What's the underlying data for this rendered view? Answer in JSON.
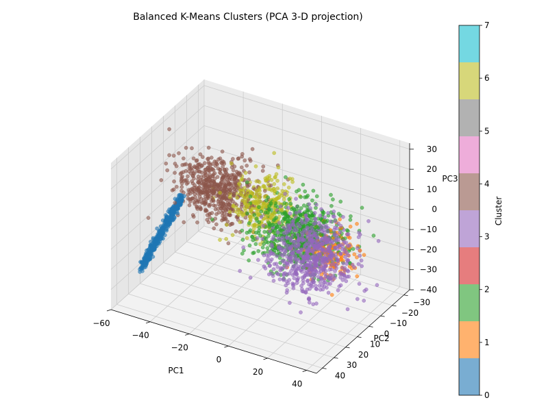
{
  "chart_data": {
    "type": "scatter",
    "projection": "3d",
    "title": "Balanced K-Means Clusters (PCA 3-D projection)",
    "xlabel": "PC1",
    "ylabel": "PC2",
    "zlabel": "PC3",
    "xlim": [
      -60,
      45
    ],
    "ylim": [
      -35,
      45
    ],
    "zlim": [
      -40,
      33
    ],
    "x_ticks": [
      "−60",
      "−40",
      "−20",
      "0",
      "20",
      "40"
    ],
    "y_ticks": [
      "−30",
      "−20",
      "−10",
      "0",
      "10",
      "20",
      "30",
      "40"
    ],
    "z_ticks": [
      "−40",
      "−30",
      "−20",
      "−10",
      "0",
      "10",
      "20",
      "30"
    ],
    "grid": true,
    "colorbar": {
      "label": "Cluster",
      "range": [
        0,
        7
      ],
      "ticks": [
        "0",
        "1",
        "2",
        "3",
        "4",
        "5",
        "6",
        "7"
      ],
      "colors": [
        "#1f77b4",
        "#ff7f0e",
        "#2ca02c",
        "#d62728",
        "#9467bd",
        "#8c564b",
        "#e377c2",
        "#7f7f7f",
        "#bcbd22",
        "#17becf"
      ]
    },
    "series": [
      {
        "cluster": 0,
        "color": "#1f77b4",
        "centroid": [
          -42,
          18,
          -12
        ],
        "spread": [
          12,
          4,
          10
        ],
        "shape": "elongated arc",
        "count": 400
      },
      {
        "cluster": 1,
        "color": "#ff7f0e",
        "centroid": [
          22,
          -5,
          -12
        ],
        "spread": [
          6,
          6,
          6
        ],
        "count": 150
      },
      {
        "cluster": 2,
        "color": "#2ca02c",
        "centroid": [
          10,
          2,
          -4
        ],
        "spread": [
          10,
          8,
          7
        ],
        "count": 700
      },
      {
        "cluster": 4,
        "color": "#9467bd",
        "centroid": [
          8,
          -12,
          -22
        ],
        "spread": [
          10,
          8,
          8
        ],
        "count": 650
      },
      {
        "cluster": 5,
        "color": "#8c564b",
        "centroid": [
          -22,
          18,
          18
        ],
        "spread": [
          10,
          6,
          7
        ],
        "count": 600
      },
      {
        "cluster": 8,
        "color": "#bcbd22",
        "centroid": [
          -5,
          8,
          10
        ],
        "spread": [
          7,
          7,
          7
        ],
        "count": 300
      }
    ]
  }
}
